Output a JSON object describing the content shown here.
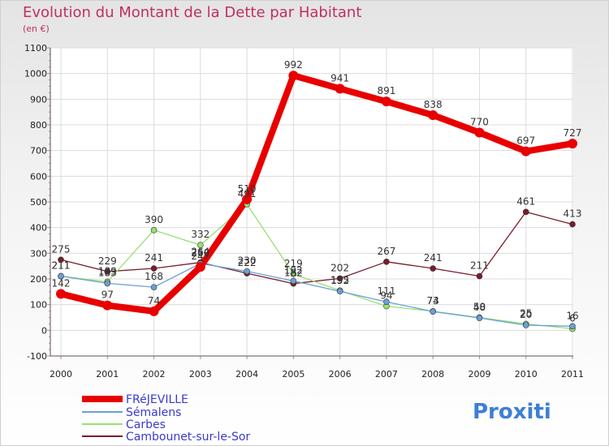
{
  "title": "Evolution du Montant de la Dette par Habitant",
  "subtitle": "(en €)",
  "logo": "Proxiti",
  "colors": {
    "FRéJEVILLE": "#e80000",
    "Sémalens": "#6aa0d8",
    "Carbes": "#98e070",
    "Cambounet-sur-le-Sor": "#7a1c2a",
    "title": "#c0305f",
    "legend_text": "#3a3ad0"
  },
  "chart_data": {
    "type": "line",
    "x": [
      "2000",
      "2001",
      "2002",
      "2003",
      "2004",
      "2005",
      "2006",
      "2007",
      "2008",
      "2009",
      "2010",
      "2011"
    ],
    "ylim": [
      -100,
      1100
    ],
    "yticks": [
      -100,
      0,
      100,
      200,
      300,
      400,
      500,
      600,
      700,
      800,
      900,
      1000,
      1100
    ],
    "grid": true,
    "legend_position": "bottom-left",
    "series": [
      {
        "name": "FRéJEVILLE",
        "values": [
          142,
          97,
          74,
          247,
          510,
          992,
          941,
          891,
          838,
          770,
          697,
          727
        ],
        "labels": [
          "142",
          "97",
          "74",
          "247",
          "510",
          "992",
          "941",
          "891",
          "838",
          "770",
          "697",
          "727"
        ]
      },
      {
        "name": "Sémalens",
        "values": [
          211,
          183,
          168,
          260,
          230,
          192,
          152,
          111,
          73,
          48,
          20,
          16
        ],
        "labels": [
          "211",
          "183",
          "168",
          "260",
          "230",
          "192",
          "152",
          "111",
          "73",
          "48",
          "20",
          "16"
        ]
      },
      {
        "name": "Carbes",
        "values": [
          211,
          189,
          390,
          332,
          491,
          219,
          155,
          94,
          74,
          50,
          25,
          6
        ],
        "labels": [
          "211",
          "189",
          "390",
          "332",
          "491",
          "219",
          "155",
          "94",
          "74",
          "50",
          "25",
          "6"
        ]
      },
      {
        "name": "Cambounet-sur-le-Sor",
        "values": [
          275,
          229,
          241,
          264,
          222,
          182,
          202,
          267,
          241,
          211,
          461,
          413
        ],
        "labels": [
          "275",
          "229",
          "241",
          "264",
          "222",
          "182",
          "202",
          "267",
          "241",
          "211",
          "461",
          "413"
        ]
      }
    ]
  }
}
